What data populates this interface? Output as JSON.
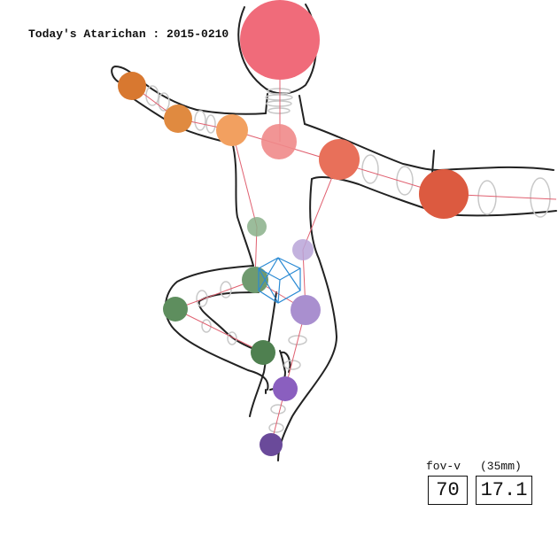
{
  "title": "Today's Atarichan : 2015-0210",
  "fov": {
    "label": "fov-v",
    "unit": "(35mm)",
    "value": "70",
    "focal": "17.1"
  },
  "joint_colors": {
    "head": "#f06b7a",
    "neck": "#f08a8a",
    "chest_right": "#e8705a",
    "arm_left": "#f2a060",
    "arm_right": "#e0604a",
    "hip_left": "#6f9a6f",
    "hip_right": "#a98fcf",
    "leg_left": "#5e8e5e",
    "leg_right": "#8a5fbf",
    "skeleton_line": "#e06070",
    "bone_ring": "#c8c8c8",
    "box": "#2a8ad4"
  }
}
